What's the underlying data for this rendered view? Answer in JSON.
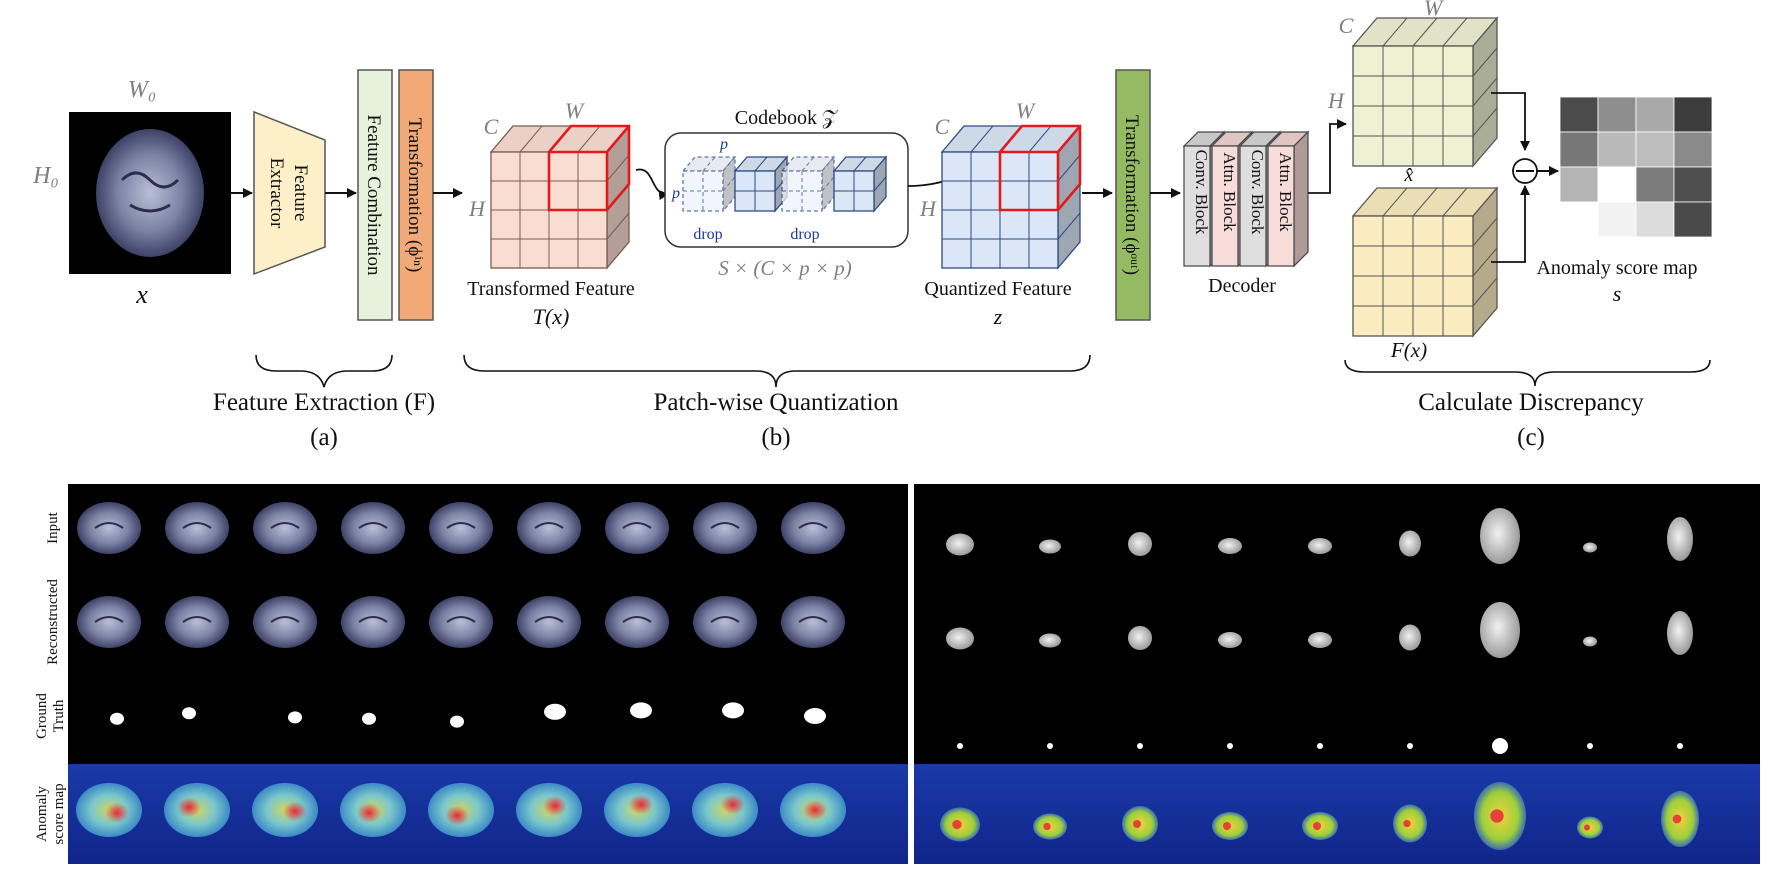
{
  "pipeline": {
    "input": {
      "label": "x",
      "width_symbol": "W₀",
      "height_symbol": "H₀"
    },
    "feature_extractor": {
      "label_line1": "Feature",
      "label_line2": "Extractor"
    },
    "feature_combination": {
      "label": "Feature Combination"
    },
    "transformation_in": {
      "label": "Transformation (ϕⁱⁿ)"
    },
    "transformed_feature": {
      "label": "Transformed Feature",
      "symbol": "T(x)",
      "c": "C",
      "w": "W",
      "h": "H"
    },
    "codebook": {
      "title": "Codebook 𝒵",
      "p_top": "p",
      "p_left": "p",
      "drop_1": "drop",
      "drop_2": "drop",
      "size": "S × (C × p × p)"
    },
    "quantized_feature": {
      "label": "Quantized Feature",
      "symbol": "z",
      "c": "C",
      "w": "W",
      "h": "H"
    },
    "transformation_out": {
      "label": "Transformation (ϕᵒᵘᵗ)"
    },
    "decoder": {
      "label": "Decoder",
      "blocks": [
        "Conv. Block",
        "Attn. Block",
        "Conv. Block",
        "Attn. Block"
      ]
    },
    "reconstructed": {
      "symbol": "x̂",
      "c": "C",
      "w": "W",
      "h": "H"
    },
    "feature_fx": {
      "symbol": "F(x)"
    },
    "anomaly_map": {
      "label": "Anomaly score map",
      "symbol": "s"
    },
    "stages": [
      {
        "title": "Feature Extraction (F)",
        "tag": "(a)"
      },
      {
        "title": "Patch-wise Quantization",
        "tag": "(b)"
      },
      {
        "title": "Calculate Discrepancy",
        "tag": "(c)"
      }
    ]
  },
  "results": {
    "row_labels": [
      {
        "line1": "Input",
        "line2": ""
      },
      {
        "line1": "Reconstructed",
        "line2": ""
      },
      {
        "line1": "Ground",
        "line2": "Truth"
      },
      {
        "line1": "Anomaly",
        "line2": "score map"
      }
    ]
  },
  "colors": {
    "transformed_feature": "#f9ddd3",
    "quantized_feature": "#dbe7f6",
    "reconstructed": "#eef1d2",
    "feature_fx": "#fbecc0",
    "feature_extractor": "#fdf0c8",
    "feature_combination": "#e6f2dc",
    "transformation_in": "#f2a978",
    "transformation_out": "#94bb64",
    "conv_block": "#dedede",
    "attn_block": "#f8dcd8",
    "highlight": "#e31a1c",
    "codebook_text": "#1f3a93"
  }
}
